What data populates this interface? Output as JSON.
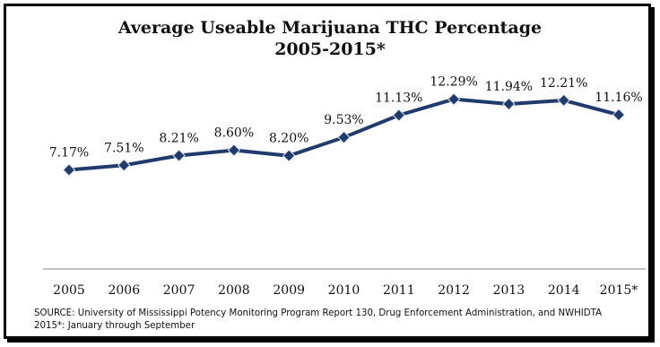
{
  "chart_data": {
    "type": "line",
    "title": "Average Useable Marijuana THC Percentage",
    "subtitle": "2005-2015*",
    "categories": [
      "2005",
      "2006",
      "2007",
      "2008",
      "2009",
      "2010",
      "2011",
      "2012",
      "2013",
      "2014",
      "2015*"
    ],
    "series": [
      {
        "values": [
          7.17,
          7.51,
          8.21,
          8.6,
          8.2,
          9.53,
          11.13,
          12.29,
          11.94,
          12.21,
          11.16
        ]
      }
    ],
    "data_labels": [
      "7.17%",
      "7.51%",
      "8.21%",
      "8.60%",
      "8.20%",
      "9.53%",
      "11.13%",
      "12.29%",
      "11.94%",
      "12.21%",
      "11.16%"
    ],
    "ylim": [
      0,
      13.5
    ],
    "xlabel": "",
    "ylabel": "",
    "grid": false,
    "line_color": "#1f3a6b"
  },
  "footer": {
    "source": "SOURCE: University of Mississippi Potency Monitoring Program Report 130, Drug Enforcement Administration, and NWHIDTA",
    "note": "2015*: January through September"
  }
}
